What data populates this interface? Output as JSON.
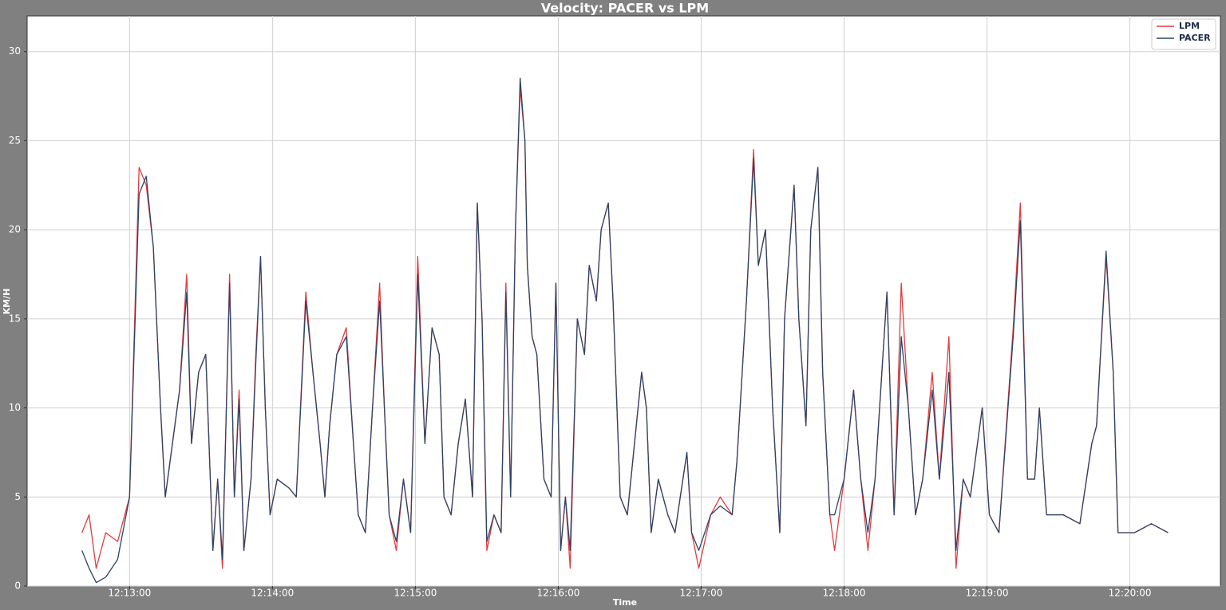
{
  "chart_data": {
    "type": "line",
    "title": "Velocity: PACER vs LPM",
    "x_label": "Time",
    "y_label": "KM/H",
    "x": [
      "12:12:40",
      "12:12:43",
      "12:12:46",
      "12:12:50",
      "12:12:55",
      "12:13:00",
      "12:13:04",
      "12:13:07",
      "12:13:10",
      "12:13:13",
      "12:13:15",
      "12:13:18",
      "12:13:21",
      "12:13:24",
      "12:13:26",
      "12:13:29",
      "12:13:32",
      "12:13:35",
      "12:13:37",
      "12:13:39",
      "12:13:42",
      "12:13:44",
      "12:13:46",
      "12:13:48",
      "12:13:51",
      "12:13:53",
      "12:13:55",
      "12:13:57",
      "12:13:59",
      "12:14:02",
      "12:14:07",
      "12:14:10",
      "12:14:14",
      "12:14:17",
      "12:14:20",
      "12:14:22",
      "12:14:24",
      "12:14:27",
      "12:14:31",
      "12:14:34",
      "12:14:36",
      "12:14:39",
      "12:14:42",
      "12:14:45",
      "12:14:47",
      "12:14:49",
      "12:14:52",
      "12:14:55",
      "12:14:58",
      "12:15:01",
      "12:15:04",
      "12:15:07",
      "12:15:10",
      "12:15:12",
      "12:15:15",
      "12:15:18",
      "12:15:21",
      "12:15:24",
      "12:15:26",
      "12:15:28",
      "12:15:30",
      "12:15:33",
      "12:15:36",
      "12:15:38",
      "12:15:40",
      "12:15:42",
      "12:15:44",
      "12:15:46",
      "12:15:47",
      "12:15:49",
      "12:15:51",
      "12:15:54",
      "12:15:57",
      "12:15:59",
      "12:16:01",
      "12:16:03",
      "12:16:05",
      "12:16:08",
      "12:16:11",
      "12:16:13",
      "12:16:16",
      "12:16:18",
      "12:16:21",
      "12:16:23",
      "12:16:26",
      "12:16:29",
      "12:16:32",
      "12:16:35",
      "12:16:37",
      "12:16:39",
      "12:16:42",
      "12:16:46",
      "12:16:49",
      "12:16:54",
      "12:16:56",
      "12:16:59",
      "12:17:04",
      "12:17:08",
      "12:17:13",
      "12:17:15",
      "12:17:19",
      "12:17:22",
      "12:17:24",
      "12:17:27",
      "12:17:30",
      "12:17:33",
      "12:17:35",
      "12:17:39",
      "12:17:41",
      "12:17:44",
      "12:17:46",
      "12:17:49",
      "12:17:51",
      "12:17:54",
      "12:17:56",
      "12:18:00",
      "12:18:04",
      "12:18:07",
      "12:18:10",
      "12:18:13",
      "12:18:18",
      "12:18:21",
      "12:18:24",
      "12:18:27",
      "12:18:30",
      "12:18:33",
      "12:18:37",
      "12:18:40",
      "12:18:44",
      "12:18:47",
      "12:18:50",
      "12:18:53",
      "12:18:58",
      "12:19:01",
      "12:19:05",
      "12:19:11",
      "12:19:14",
      "12:19:17",
      "12:19:20",
      "12:19:22",
      "12:19:25",
      "12:19:32",
      "12:19:39",
      "12:19:44",
      "12:19:46",
      "12:19:50",
      "12:19:53",
      "12:19:55",
      "12:20:02",
      "12:20:09",
      "12:20:16"
    ],
    "series": [
      {
        "name": "LPM",
        "color": "#e8393c",
        "values": [
          3,
          4,
          1,
          3,
          2.5,
          5,
          23.5,
          22.5,
          19,
          10,
          5,
          8,
          11,
          17.5,
          8,
          12,
          13,
          2,
          6,
          1,
          17.5,
          5,
          11,
          2,
          6,
          13,
          18.5,
          10,
          4,
          6,
          5.5,
          5,
          16.5,
          12,
          8,
          5,
          9,
          13,
          14.5,
          8,
          4,
          3,
          10,
          17,
          10,
          4,
          2,
          6,
          3,
          18.5,
          8,
          14.5,
          13,
          5,
          4,
          8,
          10.5,
          5,
          21.5,
          15,
          2,
          4,
          3,
          17,
          5,
          20,
          28,
          25,
          18,
          14,
          13,
          6,
          5,
          17,
          2,
          5,
          1,
          15,
          13,
          18,
          16,
          20,
          21.5,
          16,
          5,
          4,
          8,
          12,
          10,
          3,
          6,
          4,
          3,
          7.5,
          3,
          1,
          4,
          5,
          4,
          7,
          16,
          24.5,
          18,
          20,
          10,
          3,
          15,
          22.5,
          15,
          9,
          20,
          23.5,
          12,
          4,
          2,
          6,
          11,
          6,
          2,
          6,
          16.5,
          4,
          17,
          10,
          4,
          6,
          12,
          6,
          14,
          1,
          6,
          5,
          10,
          4,
          3,
          14.5,
          21.5,
          6,
          6,
          10,
          4,
          4,
          3.5,
          8,
          9,
          18.5,
          12,
          3,
          3,
          3.5,
          3
        ]
      },
      {
        "name": "PACER",
        "color": "#2c4468",
        "values": [
          2,
          1,
          0.2,
          0.5,
          1.5,
          5,
          22,
          23,
          19,
          10,
          5,
          8,
          11,
          16.5,
          8,
          12,
          13,
          2,
          6,
          1.5,
          17,
          5,
          10.5,
          2,
          6,
          12.5,
          18.5,
          10,
          4,
          6,
          5.5,
          5,
          16,
          12,
          8,
          5,
          9,
          13,
          14,
          8,
          4,
          3,
          10,
          16,
          10,
          4,
          2.5,
          6,
          3,
          17.5,
          8,
          14.5,
          13,
          5,
          4,
          8,
          10.5,
          5,
          21.5,
          15,
          2.5,
          4,
          3,
          16.5,
          5,
          20,
          28.5,
          25,
          18,
          14,
          13,
          6,
          5,
          17,
          2,
          5,
          2,
          15,
          13,
          18,
          16,
          20,
          21.5,
          16,
          5,
          4,
          8,
          12,
          10,
          3,
          6,
          4,
          3,
          7.5,
          3,
          2,
          4,
          4.5,
          4,
          7,
          16,
          24,
          18,
          20,
          10,
          3,
          15,
          22.5,
          15,
          9,
          20,
          23.5,
          12,
          4,
          4,
          6,
          11,
          6,
          3,
          6,
          16.5,
          4,
          14,
          10,
          4,
          6,
          11,
          6,
          12,
          2,
          6,
          5,
          10,
          4,
          3,
          14,
          20.5,
          6,
          6,
          10,
          4,
          4,
          3.5,
          8,
          9,
          18.8,
          12,
          3,
          3,
          3.5,
          3
        ]
      }
    ],
    "xlim": [
      "12:12:17",
      "12:20:38"
    ],
    "xticks": [
      "12:13:00",
      "12:14:00",
      "12:15:00",
      "12:16:00",
      "12:17:00",
      "12:18:00",
      "12:19:00",
      "12:20:00"
    ],
    "ylim": [
      0,
      32
    ],
    "yticks": [
      0,
      5,
      10,
      15,
      20,
      25,
      30
    ],
    "grid": true,
    "legend": "upper right"
  }
}
